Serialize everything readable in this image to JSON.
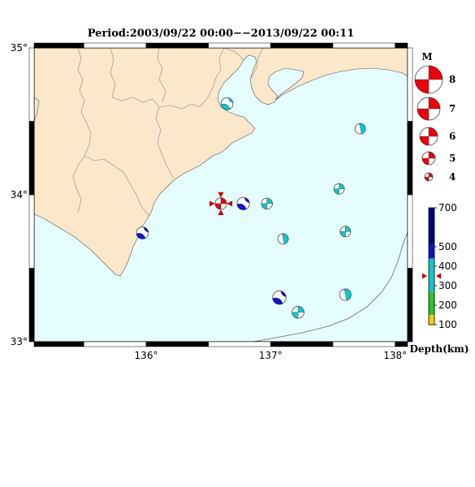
{
  "title": "Period:2003/09/22 00:00−−2013/09/22 00:11",
  "colors": {
    "land": "#fbe7c9",
    "sea": "#e6fdff",
    "border": "#8a8a8a",
    "coast": "#555555",
    "mech_red": "#e8000b",
    "mech_blue": "#1e90ff",
    "mech_cyan": "#10c8c8",
    "depth_yellow": "#f5d000",
    "depth_green": "#28c828",
    "depth_cyan": "#10c8c8",
    "depth_blue": "#1010d0",
    "depth_navy": "#000080",
    "marker": "#cc0000"
  },
  "map": {
    "lon_range": [
      135.1,
      138.1
    ],
    "lat_range": [
      33.0,
      35.0
    ],
    "lon_ticks": [
      "136°",
      "137°",
      "138°"
    ],
    "lon_tick_values": [
      136,
      137,
      138
    ],
    "lat_ticks": [
      "33°",
      "34°",
      "35°"
    ],
    "lat_tick_values": [
      33,
      34,
      35
    ]
  },
  "events": [
    {
      "lon": 136.65,
      "lat": 34.62,
      "mag": 4.8,
      "depth": 330,
      "type": "mixed"
    },
    {
      "lon": 137.72,
      "lat": 34.45,
      "mag": 4.5,
      "depth": 340,
      "type": "normal"
    },
    {
      "lon": 137.55,
      "lat": 34.04,
      "mag": 4.5,
      "depth": 360,
      "type": "strike"
    },
    {
      "lon": 136.78,
      "lat": 33.94,
      "mag": 4.9,
      "depth": 450,
      "type": "mixed"
    },
    {
      "lon": 136.97,
      "lat": 33.94,
      "mag": 4.6,
      "depth": 340,
      "type": "strike"
    },
    {
      "lon": 135.97,
      "lat": 33.74,
      "mag": 4.8,
      "depth": 480,
      "type": "mixed"
    },
    {
      "lon": 137.1,
      "lat": 33.7,
      "mag": 4.5,
      "depth": 330,
      "type": "normal"
    },
    {
      "lon": 137.6,
      "lat": 33.75,
      "mag": 4.5,
      "depth": 350,
      "type": "strike"
    },
    {
      "lon": 137.07,
      "lat": 33.3,
      "mag": 5.1,
      "depth": 460,
      "type": "mixed"
    },
    {
      "lon": 137.22,
      "lat": 33.2,
      "mag": 4.8,
      "depth": 330,
      "type": "strike"
    },
    {
      "lon": 137.6,
      "lat": 33.32,
      "mag": 4.7,
      "depth": 340,
      "type": "normal"
    }
  ],
  "highlight_event": {
    "lon": 136.6,
    "lat": 33.94,
    "mag": 4.7,
    "depth": 350
  },
  "magnitude_legend": {
    "title": "M",
    "entries": [
      {
        "mag": 8,
        "label": "8"
      },
      {
        "mag": 7,
        "label": "7"
      },
      {
        "mag": 6,
        "label": "6"
      },
      {
        "mag": 5,
        "label": "5"
      },
      {
        "mag": 4,
        "label": "4"
      }
    ]
  },
  "depth_legend": {
    "title": "Depth(km)",
    "ticks": [
      "100",
      "200",
      "300",
      "400",
      "500",
      "700"
    ],
    "tick_values": [
      100,
      200,
      300,
      400,
      500,
      700
    ],
    "range": [
      100,
      700
    ],
    "segments": [
      {
        "from": 100,
        "to": 150,
        "color": "#f5d000"
      },
      {
        "from": 150,
        "to": 270,
        "color": "#28c828"
      },
      {
        "from": 270,
        "to": 440,
        "color": "#10c8c8"
      },
      {
        "from": 440,
        "to": 510,
        "color": "#1010d0"
      },
      {
        "from": 510,
        "to": 700,
        "color": "#000080"
      }
    ],
    "marker_depth": 350
  }
}
